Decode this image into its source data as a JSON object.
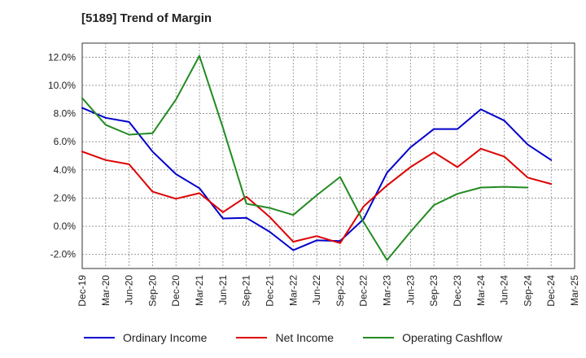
{
  "chart_data": {
    "type": "line",
    "title": "[5189]  Trend of Margin",
    "xlabel": "",
    "ylabel": "",
    "categories": [
      "Dec-19",
      "Mar-20",
      "Jun-20",
      "Sep-20",
      "Dec-20",
      "Mar-21",
      "Jun-21",
      "Sep-21",
      "Dec-21",
      "Mar-22",
      "Jun-22",
      "Sep-22",
      "Dec-22",
      "Mar-23",
      "Jun-23",
      "Sep-23",
      "Dec-23",
      "Mar-24",
      "Jun-24",
      "Sep-24",
      "Dec-24",
      "Mar-25"
    ],
    "ylim": [
      -3.0,
      13.0
    ],
    "yticks": [
      12.0,
      10.0,
      8.0,
      6.0,
      4.0,
      2.0,
      0.0,
      -2.0
    ],
    "ytick_labels": [
      "12.0%",
      "10.0%",
      "8.0%",
      "6.0%",
      "4.0%",
      "2.0%",
      "0.0%",
      "-2.0%"
    ],
    "grid": true,
    "legend_position": "bottom",
    "series": [
      {
        "name": "Ordinary Income",
        "color": "#0000cc",
        "values": [
          8.4,
          7.7,
          7.4,
          5.3,
          3.7,
          2.7,
          0.55,
          0.6,
          -0.4,
          -1.7,
          -1.0,
          -1.05,
          0.5,
          3.8,
          5.6,
          6.9,
          6.9,
          8.3,
          7.5,
          5.8,
          4.7,
          null
        ]
      },
      {
        "name": "Net Income",
        "color": "#dd0000",
        "values": [
          5.3,
          4.7,
          4.4,
          2.45,
          1.95,
          2.35,
          1.0,
          2.1,
          0.65,
          -1.1,
          -0.7,
          -1.2,
          1.4,
          2.9,
          4.2,
          5.25,
          4.2,
          5.5,
          4.95,
          3.45,
          3.0,
          null
        ]
      },
      {
        "name": "Operating Cashflow",
        "color": "#228b22",
        "values": [
          9.1,
          7.2,
          6.5,
          6.6,
          9.0,
          12.1,
          7.0,
          1.6,
          1.3,
          0.8,
          2.2,
          3.5,
          0.3,
          -2.4,
          -0.4,
          1.5,
          2.3,
          2.75,
          2.8,
          2.75,
          null,
          null
        ]
      }
    ]
  }
}
